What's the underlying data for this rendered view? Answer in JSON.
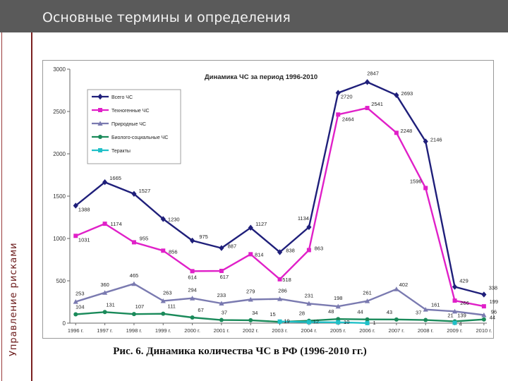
{
  "page": {
    "title": "Основные термины и определения",
    "side_label": "Управление рисками"
  },
  "caption": "Рис. 6. Динамика количества ЧС в РФ (1996-2010 гг.)",
  "chart_data": {
    "type": "line",
    "title": "Динамика ЧС за период 1996-2010",
    "xlabel": "",
    "ylabel": "",
    "categories": [
      "1996 г.",
      "1997 г.",
      "1998 г.",
      "1999 г.",
      "2000 г.",
      "2001 г.",
      "2002 г.",
      "2003 г.",
      "2004 г.",
      "2005 г.",
      "2006 г.",
      "2007 г.",
      "2008 г.",
      "2009 г.",
      "2010 г."
    ],
    "ylim": [
      0,
      3000
    ],
    "yticks": [
      0,
      500,
      1000,
      1500,
      2000,
      2500,
      3000
    ],
    "legend_position": "top-left",
    "grid": false,
    "series": [
      {
        "name": "Всего ЧС",
        "color": "#1f1f7a",
        "marker": "diamond",
        "values": [
          1388,
          1665,
          1527,
          1230,
          975,
          887,
          1127,
          838,
          1134,
          2720,
          2847,
          2693,
          2146,
          429,
          338
        ],
        "labels": [
          "1388",
          "1665",
          "1527",
          "1230",
          "975",
          "887",
          "1127",
          "838",
          "1134",
          "2720",
          "2847",
          "2693",
          "2146",
          "429",
          "338"
        ]
      },
      {
        "name": "Техногенные ЧС",
        "color": "#e020c8",
        "marker": "square",
        "values": [
          1031,
          1174,
          955,
          856,
          614,
          617,
          814,
          518,
          863,
          2464,
          2541,
          2248,
          1596,
          266,
          199
        ],
        "labels": [
          "1031",
          "1174",
          "955",
          "856",
          "614",
          "617",
          "814",
          "518",
          "863",
          "2464",
          "2541",
          "2248",
          "1596",
          "266",
          "199"
        ]
      },
      {
        "name": "Природные ЧС",
        "color": "#7a7ab0",
        "marker": "triangle",
        "values": [
          253,
          360,
          465,
          263,
          294,
          233,
          279,
          286,
          231,
          198,
          261,
          402,
          161,
          139,
          96
        ],
        "labels": [
          "253",
          "360",
          "465",
          "263",
          "294",
          "233",
          "279",
          "286",
          "231",
          "198",
          "261",
          "402",
          "161",
          "139",
          "96"
        ]
      },
      {
        "name": "Биолого-социальные ЧС",
        "color": "#1a8a5a",
        "marker": "circle",
        "values": [
          104,
          131,
          107,
          111,
          67,
          37,
          34,
          15,
          28,
          48,
          44,
          43,
          37,
          21,
          44
        ],
        "labels": [
          "104",
          "131",
          "107",
          "111",
          "67",
          "37",
          "34",
          "15",
          "28",
          "48",
          "44",
          "43",
          "37",
          "21",
          "44"
        ]
      },
      {
        "name": "Теракты",
        "color": "#20c0c8",
        "marker": "square",
        "values": [
          null,
          null,
          null,
          null,
          null,
          null,
          null,
          19,
          12,
          10,
          1,
          null,
          null,
          4,
          null
        ],
        "labels": [
          "",
          "",
          "",
          "",
          "",
          "",
          "",
          "19",
          "12",
          "10",
          "1",
          "",
          "",
          "4",
          ""
        ]
      }
    ]
  }
}
